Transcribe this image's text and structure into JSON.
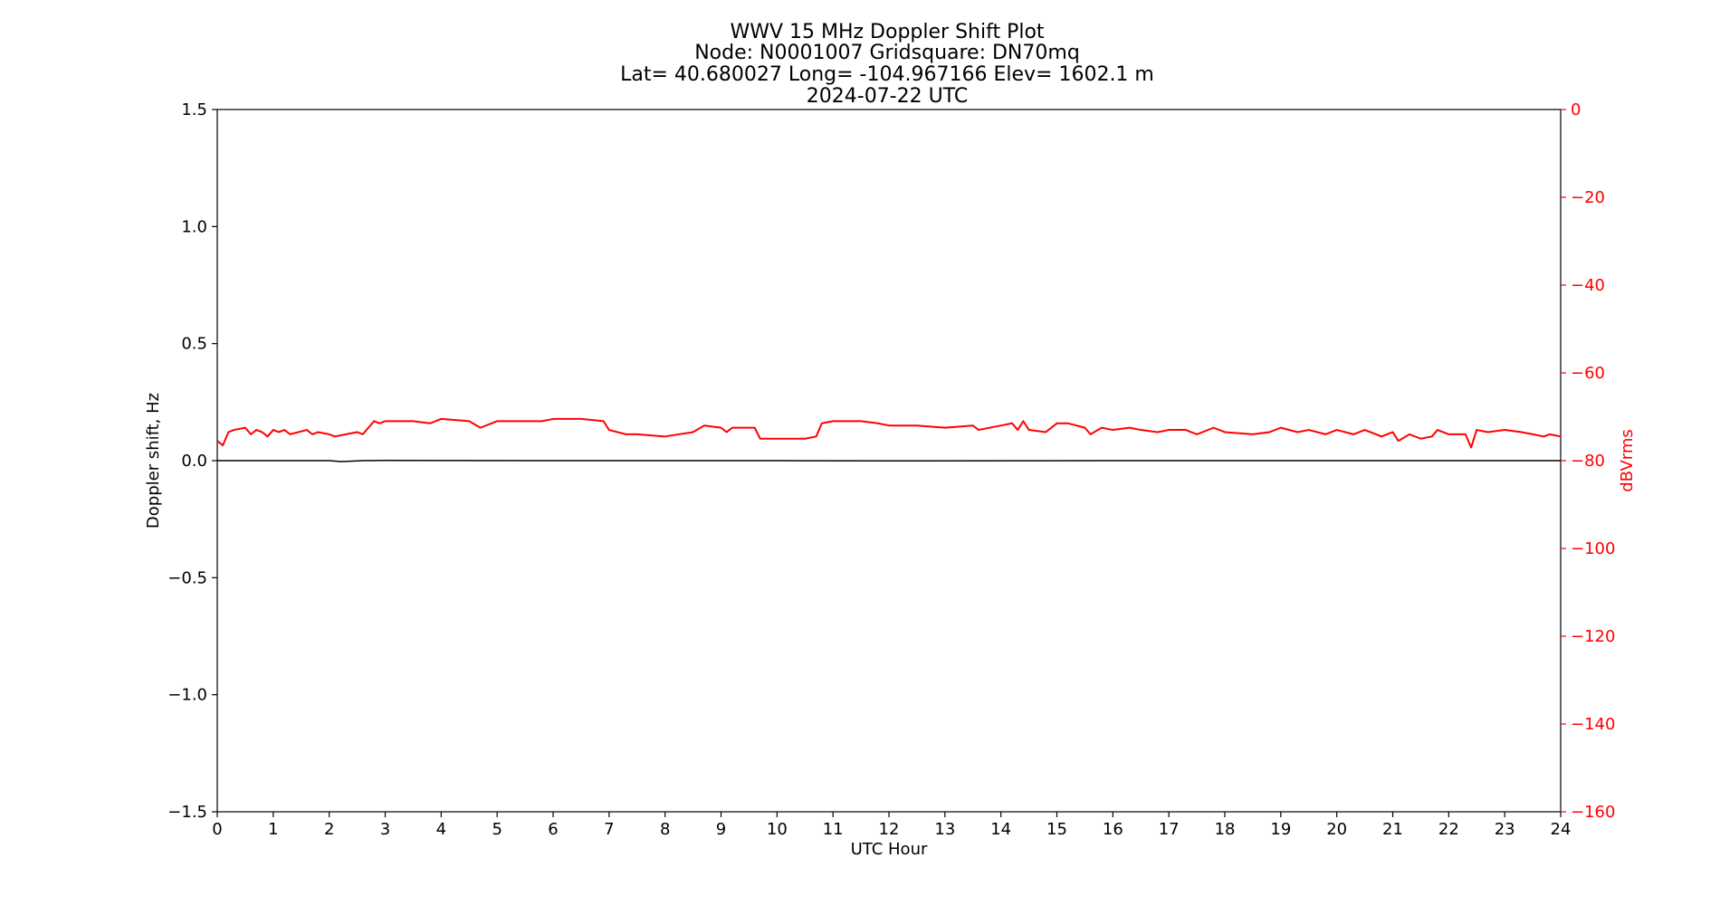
{
  "chart_data": {
    "type": "line",
    "title_lines": [
      "WWV 15 MHz Doppler Shift Plot",
      "Node:  N0001007     Gridsquare:  DN70mq",
      "Lat= 40.680027    Long= -104.967166    Elev= 1602.1 m",
      "2024-07-22  UTC"
    ],
    "xlabel": "UTC Hour",
    "ylabel": "Doppler shift, Hz",
    "y2label": "dBVrms",
    "xlim": [
      0,
      24
    ],
    "ylim": [
      -1.5,
      1.5
    ],
    "y2lim": [
      -160,
      0
    ],
    "x_ticks": [
      0,
      1,
      2,
      3,
      4,
      5,
      6,
      7,
      8,
      9,
      10,
      11,
      12,
      13,
      14,
      15,
      16,
      17,
      18,
      19,
      20,
      21,
      22,
      23,
      24
    ],
    "y_ticks": [
      "1.5",
      "1.0",
      "0.5",
      "0.0",
      "−0.5",
      "−1.0",
      "−1.5"
    ],
    "y_tick_values": [
      1.5,
      1.0,
      0.5,
      0.0,
      -0.5,
      -1.0,
      -1.5
    ],
    "y2_ticks": [
      "0",
      "−20",
      "−40",
      "−60",
      "−80",
      "−100",
      "−120",
      "−140",
      "−160"
    ],
    "y2_tick_values": [
      0,
      -20,
      -40,
      -60,
      -80,
      -100,
      -120,
      -140,
      -160
    ],
    "grid": false,
    "colors": {
      "doppler": "#000000",
      "power": "#ff0000",
      "axis_right": "#ff0000"
    },
    "series": [
      {
        "axis": "left",
        "x": [
          0,
          2,
          2.2,
          2.6,
          3,
          6,
          10,
          12,
          16,
          20,
          24
        ],
        "values": [
          0.0,
          0.0,
          -0.004,
          0.0,
          0.001,
          0.0,
          0.0,
          -0.001,
          0.0,
          0.0,
          0.0
        ]
      },
      {
        "axis": "right",
        "x": [
          0.0,
          0.1,
          0.2,
          0.3,
          0.5,
          0.6,
          0.7,
          0.8,
          0.9,
          1.0,
          1.1,
          1.2,
          1.3,
          1.6,
          1.7,
          1.8,
          2.0,
          2.1,
          2.3,
          2.5,
          2.6,
          2.7,
          2.8,
          2.9,
          3.0,
          3.5,
          3.8,
          4.0,
          4.5,
          4.7,
          4.9,
          5.0,
          5.5,
          5.8,
          6.0,
          6.5,
          6.9,
          7.0,
          7.3,
          7.5,
          8.0,
          8.5,
          8.7,
          9.0,
          9.1,
          9.2,
          9.6,
          9.7,
          10.0,
          10.5,
          10.7,
          10.8,
          11.0,
          11.5,
          11.8,
          12.0,
          12.5,
          13.0,
          13.5,
          13.6,
          14.0,
          14.2,
          14.3,
          14.4,
          14.5,
          14.8,
          15.0,
          15.2,
          15.5,
          15.6,
          15.8,
          16.0,
          16.3,
          16.5,
          16.8,
          17.0,
          17.3,
          17.5,
          17.8,
          18.0,
          18.5,
          18.8,
          19.0,
          19.3,
          19.5,
          19.8,
          20.0,
          20.3,
          20.5,
          20.8,
          21.0,
          21.1,
          21.3,
          21.5,
          21.7,
          21.8,
          22.0,
          22.3,
          22.4,
          22.5,
          22.7,
          23.0,
          23.3,
          23.5,
          23.7,
          23.8,
          24.0
        ],
        "values": [
          -75.5,
          -76.5,
          -73.5,
          -73.0,
          -72.5,
          -74.0,
          -73.0,
          -73.5,
          -74.5,
          -73.0,
          -73.5,
          -73.0,
          -74.0,
          -73.0,
          -74.0,
          -73.5,
          -74.0,
          -74.5,
          -74.0,
          -73.5,
          -74.0,
          -72.5,
          -71.0,
          -71.5,
          -71.0,
          -71.0,
          -71.5,
          -70.5,
          -71.0,
          -72.5,
          -71.5,
          -71.0,
          -71.0,
          -71.0,
          -70.5,
          -70.5,
          -71.0,
          -73.0,
          -74.0,
          -74.0,
          -74.5,
          -73.5,
          -72.0,
          -72.5,
          -73.5,
          -72.5,
          -72.5,
          -75.0,
          -75.0,
          -75.0,
          -74.5,
          -71.5,
          -71.0,
          -71.0,
          -71.5,
          -72.0,
          -72.0,
          -72.5,
          -72.0,
          -73.0,
          -72.0,
          -71.5,
          -73.0,
          -71.0,
          -73.0,
          -73.5,
          -71.5,
          -71.5,
          -72.5,
          -74.0,
          -72.5,
          -73.0,
          -72.5,
          -73.0,
          -73.5,
          -73.0,
          -73.0,
          -74.0,
          -72.5,
          -73.5,
          -74.0,
          -73.5,
          -72.5,
          -73.5,
          -73.0,
          -74.0,
          -73.0,
          -74.0,
          -73.0,
          -74.5,
          -73.5,
          -75.5,
          -74.0,
          -75.0,
          -74.5,
          -73.0,
          -74.0,
          -74.0,
          -77.0,
          -73.0,
          -73.5,
          -73.0,
          -73.5,
          -74.0,
          -74.5,
          -74.0,
          -74.5
        ]
      }
    ]
  }
}
